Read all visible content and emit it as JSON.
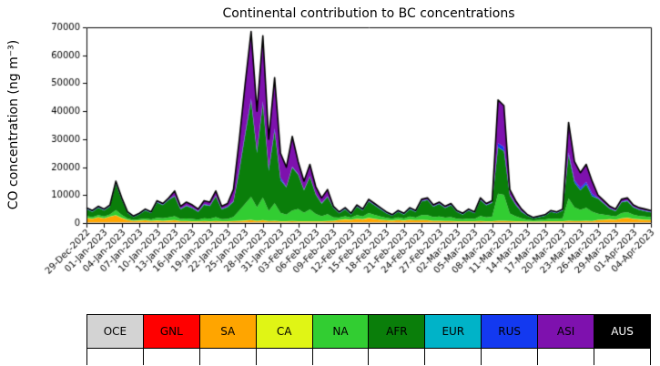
{
  "chart_data": {
    "type": "area",
    "title": "Continental contribution to BC concentrations",
    "ylabel": "CO concentration (ng m⁻³)",
    "ylim": [
      0,
      70000
    ],
    "yticks": [
      0,
      10000,
      20000,
      30000,
      40000,
      50000,
      60000,
      70000
    ],
    "n_points": 97,
    "outline_color": "#000000",
    "xtick_positions": [
      0,
      3,
      6,
      9,
      12,
      15,
      18,
      21,
      24,
      27,
      30,
      33,
      36,
      39,
      42,
      45,
      48,
      51,
      54,
      57,
      60,
      63,
      66,
      69,
      72,
      75,
      78,
      81,
      84,
      87,
      90,
      93,
      96
    ],
    "xtick_labels": [
      "29-Dec-2022",
      "01-Jan-2023",
      "04-Jan-2023",
      "07-Jan-2023",
      "10-Jan-2023",
      "13-Jan-2023",
      "16-Jan-2023",
      "19-Jan-2023",
      "22-Jan-2023",
      "25-Jan-2023",
      "28-Jan-2023",
      "31-Jan-2023",
      "03-Feb-2023",
      "06-Feb-2023",
      "09-Feb-2023",
      "12-Feb-2023",
      "15-Feb-2023",
      "18-Feb-2023",
      "21-Feb-2023",
      "24-Feb-2023",
      "27-Feb-2023",
      "02-Mar-2023",
      "05-Mar-2023",
      "08-Mar-2023",
      "11-Mar-2023",
      "14-Mar-2023",
      "17-Mar-2023",
      "20-Mar-2023",
      "23-Mar-2023",
      "26-Mar-2023",
      "29-Mar-2023",
      "01-Apr-2023",
      "04-Apr-2023"
    ],
    "series": [
      {
        "name": "OCE",
        "color": "#d3d3d3",
        "const": 250
      },
      {
        "name": "GNL",
        "color": "#ff0000",
        "const": 0
      },
      {
        "name": "SA",
        "color": "#ffa500",
        "values": [
          1500,
          1200,
          1800,
          1400,
          2000,
          2500,
          1500,
          800,
          500,
          600,
          700,
          500,
          600,
          500,
          600,
          700,
          400,
          400,
          300,
          300,
          400,
          300,
          400,
          300,
          300,
          400,
          500,
          600,
          800,
          500,
          700,
          400,
          500,
          300,
          300,
          400,
          300,
          300,
          300,
          300,
          300,
          400,
          500,
          800,
          1000,
          900,
          1200,
          1000,
          1500,
          1200,
          900,
          700,
          600,
          800,
          600,
          900,
          700,
          800,
          700,
          500,
          500,
          400,
          400,
          300,
          300,
          300,
          300,
          400,
          300,
          300,
          500,
          500,
          400,
          300,
          300,
          200,
          200,
          200,
          300,
          300,
          300,
          300,
          500,
          400,
          400,
          500,
          400,
          800,
          900,
          1000,
          900,
          1400,
          1600,
          1200,
          1000,
          900,
          800
        ]
      },
      {
        "name": "CA",
        "color": "#e0f515",
        "const": 100
      },
      {
        "name": "NA",
        "color": "#32cd32",
        "values": [
          660,
          540,
          720,
          600,
          780,
          1800,
          1080,
          480,
          300,
          420,
          600,
          480,
          960,
          840,
          1080,
          1380,
          720,
          900,
          780,
          600,
          960,
          900,
          1380,
          720,
          840,
          1440,
          3600,
          6000,
          8220,
          4800,
          8040,
          3600,
          6240,
          3000,
          2400,
          3720,
          4400,
          3000,
          4200,
          2600,
          1800,
          2400,
          1200,
          800,
          1100,
          700,
          1300,
          1000,
          1700,
          1400,
          1100,
          800,
          600,
          900,
          700,
          1100,
          900,
          1700,
          1800,
          1300,
          1500,
          1200,
          1400,
          900,
          700,
          1000,
          800,
          1800,
          1400,
          1600,
          9680,
          9240,
          2640,
          1760,
          1100,
          660,
          440,
          550,
          660,
          990,
          880,
          1100,
          7920,
          4840,
          3960,
          4620,
          3300,
          2200,
          1760,
          1320,
          1100,
          1870,
          1980,
          1430,
          1210,
          1100,
          990
        ]
      },
      {
        "name": "AFR",
        "color": "#0a7e0a",
        "values": [
          2465,
          1935,
          2580,
          2150,
          2795,
          9350,
          5370,
          1920,
          975,
          1705,
          2850,
          2220,
          5440,
          4710,
          6270,
          7095,
          3380,
          4475,
          3845,
          2750,
          4840,
          4575,
          7395,
          3480,
          4210,
          5360,
          14150,
          24650,
          34255,
          19450,
          33560,
          14250,
          25810,
          11700,
          9700,
          15430,
          12300,
          8100,
          11700,
          6900,
          4500,
          6200,
          3340,
          1560,
          2470,
          1090,
          3010,
          2100,
          4190,
          3380,
          2570,
          1660,
          1020,
          1930,
          1390,
          2570,
          2030,
          4890,
          5360,
          3710,
          4450,
          3440,
          4180,
          2430,
          1690,
          2800,
          2060,
          5660,
          4280,
          5020,
          16470,
          15610,
          6560,
          4140,
          2250,
          1360,
          640,
          1000,
          1260,
          2340,
          1980,
          2700,
          15530,
          8910,
          6990,
          8330,
          5550,
          5400,
          3940,
          2480,
          1900,
          3780,
          3920,
          2620,
          2140,
          1900,
          1660
        ]
      },
      {
        "name": "EUR",
        "color": "#00b3c8",
        "const": 100
      },
      {
        "name": "RUS",
        "color": "#1339f0",
        "values": [
          150,
          150,
          150,
          150,
          150,
          150,
          150,
          150,
          150,
          150,
          150,
          150,
          150,
          150,
          150,
          150,
          150,
          150,
          150,
          150,
          150,
          150,
          150,
          150,
          150,
          150,
          800,
          800,
          800,
          800,
          800,
          800,
          800,
          800,
          150,
          150,
          150,
          150,
          150,
          150,
          150,
          150,
          150,
          150,
          150,
          150,
          150,
          150,
          150,
          150,
          150,
          150,
          150,
          150,
          150,
          150,
          150,
          150,
          150,
          150,
          150,
          150,
          150,
          150,
          150,
          150,
          150,
          150,
          150,
          150,
          1500,
          1500,
          150,
          150,
          150,
          150,
          150,
          150,
          150,
          150,
          150,
          150,
          800,
          800,
          800,
          800,
          800,
          150,
          150,
          150,
          150,
          150,
          150,
          150,
          150,
          150,
          150
        ]
      },
      {
        "name": "ASI",
        "color": "#7e11ae",
        "values": [
          275,
          225,
          300,
          250,
          325,
          750,
          450,
          200,
          125,
          175,
          250,
          200,
          400,
          350,
          450,
          1725,
          900,
          1125,
          975,
          750,
          1200,
          1125,
          1725,
          900,
          1050,
          4200,
          10500,
          17500,
          23975,
          14000,
          23450,
          10500,
          18200,
          8750,
          7000,
          10850,
          4400,
          3000,
          4200,
          2600,
          1800,
          2400,
          360,
          240,
          330,
          210,
          390,
          300,
          510,
          420,
          330,
          240,
          180,
          270,
          210,
          330,
          270,
          510,
          540,
          390,
          450,
          360,
          420,
          270,
          210,
          300,
          240,
          540,
          420,
          480,
          15400,
          14700,
          1800,
          1200,
          750,
          180,
          120,
          150,
          180,
          270,
          240,
          300,
          10800,
          6600,
          5400,
          6300,
          4500,
          1000,
          800,
          600,
          500,
          850,
          900,
          650,
          550,
          500,
          450
        ]
      },
      {
        "name": "AUS",
        "color": "#000000",
        "const": 0
      }
    ]
  },
  "legend": {
    "items": [
      {
        "label": "OCE",
        "color": "#d3d3d3",
        "text": "#000000"
      },
      {
        "label": "GNL",
        "color": "#ff0000",
        "text": "#000000"
      },
      {
        "label": "SA",
        "color": "#ffa500",
        "text": "#000000"
      },
      {
        "label": "CA",
        "color": "#e0f515",
        "text": "#000000"
      },
      {
        "label": "NA",
        "color": "#32cd32",
        "text": "#000000"
      },
      {
        "label": "AFR",
        "color": "#0a7e0a",
        "text": "#000000"
      },
      {
        "label": "EUR",
        "color": "#00b3c8",
        "text": "#000000"
      },
      {
        "label": "RUS",
        "color": "#1339f0",
        "text": "#000000"
      },
      {
        "label": "ASI",
        "color": "#7e11ae",
        "text": "#000000"
      },
      {
        "label": "AUS",
        "color": "#000000",
        "text": "#ffffff"
      }
    ]
  }
}
